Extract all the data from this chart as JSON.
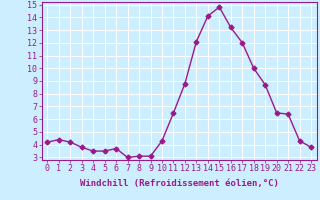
{
  "x": [
    0,
    1,
    2,
    3,
    4,
    5,
    6,
    7,
    8,
    9,
    10,
    11,
    12,
    13,
    14,
    15,
    16,
    17,
    18,
    19,
    20,
    21,
    22,
    23
  ],
  "y": [
    4.2,
    4.4,
    4.2,
    3.8,
    3.5,
    3.5,
    3.7,
    3.0,
    3.1,
    3.1,
    4.3,
    6.5,
    8.8,
    12.1,
    14.1,
    14.8,
    13.2,
    12.0,
    10.0,
    8.7,
    6.5,
    6.4,
    4.3,
    3.8
  ],
  "line_color": "#9b1a8a",
  "marker": "D",
  "marker_size": 2.5,
  "bg_color": "#cceeff",
  "grid_color": "#ffffff",
  "xlabel": "Windchill (Refroidissement éolien,°C)",
  "ylabel": "",
  "ylim": [
    3,
    15
  ],
  "xlim": [
    -0.5,
    23.5
  ],
  "yticks": [
    3,
    4,
    5,
    6,
    7,
    8,
    9,
    10,
    11,
    12,
    13,
    14,
    15
  ],
  "xticks": [
    0,
    1,
    2,
    3,
    4,
    5,
    6,
    7,
    8,
    9,
    10,
    11,
    12,
    13,
    14,
    15,
    16,
    17,
    18,
    19,
    20,
    21,
    22,
    23
  ],
  "tick_color": "#9b1a8a",
  "label_color": "#9b1a8a",
  "axis_color": "#9b1a8a",
  "xlabel_fontsize": 6.5,
  "tick_fontsize": 6.0,
  "linewidth": 1.0
}
